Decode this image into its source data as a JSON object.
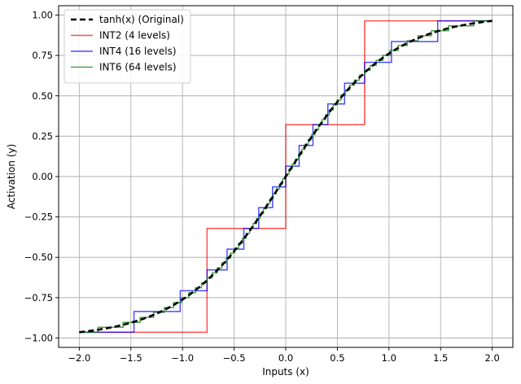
{
  "chart_data": {
    "type": "line",
    "title": "",
    "xlabel": "Inputs (x)",
    "ylabel": "Activation (y)",
    "xlim": [
      -2.2,
      2.2
    ],
    "ylim": [
      -1.058,
      1.058
    ],
    "xticks": [
      -2.0,
      -1.5,
      -1.0,
      -0.5,
      0.0,
      0.5,
      1.0,
      1.5,
      2.0
    ],
    "xtick_labels": [
      "−2.0",
      "−1.5",
      "−1.0",
      "−0.5",
      "0.0",
      "0.5",
      "1.0",
      "1.5",
      "2.0"
    ],
    "yticks": [
      -1.0,
      -0.75,
      -0.5,
      -0.25,
      0.0,
      0.25,
      0.5,
      0.75,
      1.0
    ],
    "ytick_labels": [
      "−1.00",
      "−0.75",
      "−0.50",
      "−0.25",
      "0.00",
      "0.25",
      "0.50",
      "0.75",
      "1.00"
    ],
    "grid": true,
    "legend_position": "top-left",
    "series": [
      {
        "name": "tanh(x) (Original)",
        "kind": "tanh",
        "x_range": [
          -2.0,
          2.0
        ],
        "color": "#000000",
        "dashed": true
      },
      {
        "name": "INT2 (4 levels)",
        "kind": "quantized",
        "levels": 4,
        "x_range": [
          -2.0,
          2.0
        ],
        "color": "#ff0000"
      },
      {
        "name": "INT4 (16 levels)",
        "kind": "quantized",
        "levels": 16,
        "x_range": [
          -2.0,
          2.0
        ],
        "color": "#0000ff"
      },
      {
        "name": "INT6 (64 levels)",
        "kind": "quantized",
        "levels": 64,
        "x_range": [
          -2.0,
          2.0
        ],
        "color": "#008000"
      }
    ]
  }
}
